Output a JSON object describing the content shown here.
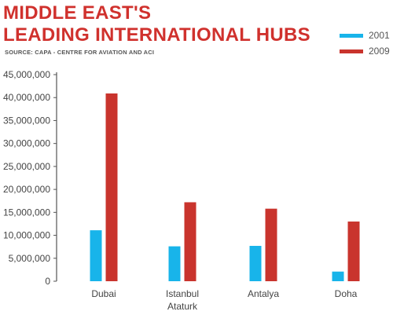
{
  "header": {
    "title_line1": "MIDDLE EAST'S",
    "title_line2": "LEADING INTERNATIONAL HUBS",
    "source": "SOURCE: CAPA - CENTRE FOR AVIATION AND ACI"
  },
  "colors": {
    "title": "#d0312d",
    "series_2001": "#18b4ea",
    "series_2009": "#c9342d",
    "axis": "#555555",
    "grid": "#cfcfcf"
  },
  "chart_data": {
    "type": "bar",
    "title": "MIDDLE EAST'S LEADING INTERNATIONAL HUBS",
    "subtitle": "SOURCE: CAPA - CENTRE FOR AVIATION AND ACI",
    "xlabel": "",
    "ylabel": "",
    "categories": [
      [
        "Dubai"
      ],
      [
        "Istanbul",
        "Ataturk"
      ],
      [
        "Antalya"
      ],
      [
        "Doha"
      ]
    ],
    "series": [
      {
        "name": "2001",
        "color": "#18b4ea",
        "values": [
          11100000,
          7600000,
          7700000,
          2100000
        ]
      },
      {
        "name": "2009",
        "color": "#c9342d",
        "values": [
          40900000,
          17200000,
          15800000,
          13000000
        ]
      }
    ],
    "ylim": [
      0,
      45000000
    ],
    "yticks": [
      0,
      5000000,
      10000000,
      15000000,
      20000000,
      25000000,
      30000000,
      35000000,
      40000000,
      45000000
    ],
    "ytick_labels": [
      "0",
      "5,000,000",
      "10,000,000",
      "15,000,000",
      "20,000,000",
      "25,000,000",
      "30,000,000",
      "35,000,000",
      "40,000,000",
      "45,000,000"
    ],
    "grid": false,
    "legend_position": "top-right"
  }
}
